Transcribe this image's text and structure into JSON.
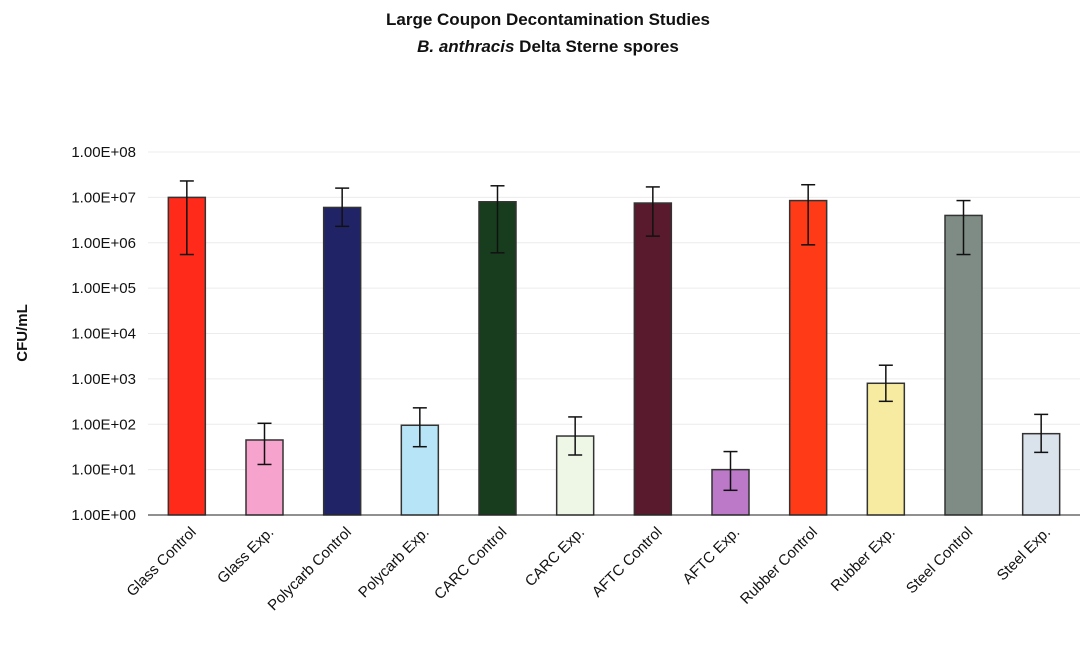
{
  "chart_data": {
    "type": "bar",
    "title": "Large Coupon Decontamination Studies",
    "subtitle_italic": "B. anthracis",
    "subtitle_rest": "Delta Sterne spores",
    "ylabel": "CFU/mL",
    "xlabel": "",
    "y_scale": "log",
    "ylim": [
      1,
      100000000
    ],
    "y_ticks": [
      "1.00E+00",
      "1.00E+01",
      "1.00E+02",
      "1.00E+03",
      "1.00E+04",
      "1.00E+05",
      "1.00E+06",
      "1.00E+07",
      "1.00E+08"
    ],
    "grid": true,
    "legend": "none",
    "categories": [
      "Glass Control",
      "Glass Exp.",
      "Polycarb Control",
      "Polycarb Exp.",
      "CARC Control",
      "CARC Exp.",
      "AFTC Control",
      "AFTC Exp.",
      "Rubber Control",
      "Rubber Exp.",
      "Steel Control",
      "Steel Exp."
    ],
    "values": [
      10000000,
      45,
      6000000,
      95,
      8000000,
      55,
      7500000,
      10,
      8500000,
      800,
      4000000,
      62
    ],
    "error_low": [
      550000,
      13,
      2300000,
      32,
      600000,
      21,
      1400000,
      3.5,
      900000,
      320,
      550000,
      24
    ],
    "error_high": [
      23000000,
      105,
      16000000,
      230,
      18000000,
      145,
      17000000,
      25,
      19000000,
      2000,
      8500000,
      165
    ],
    "colors": [
      "#ff2a1a",
      "#f6a4cd",
      "#202466",
      "#b7e4f6",
      "#173d1e",
      "#eef6e6",
      "#581a2c",
      "#bb79c8",
      "#ff3a16",
      "#f6eba0",
      "#7f8c86",
      "#dae2ec"
    ]
  }
}
